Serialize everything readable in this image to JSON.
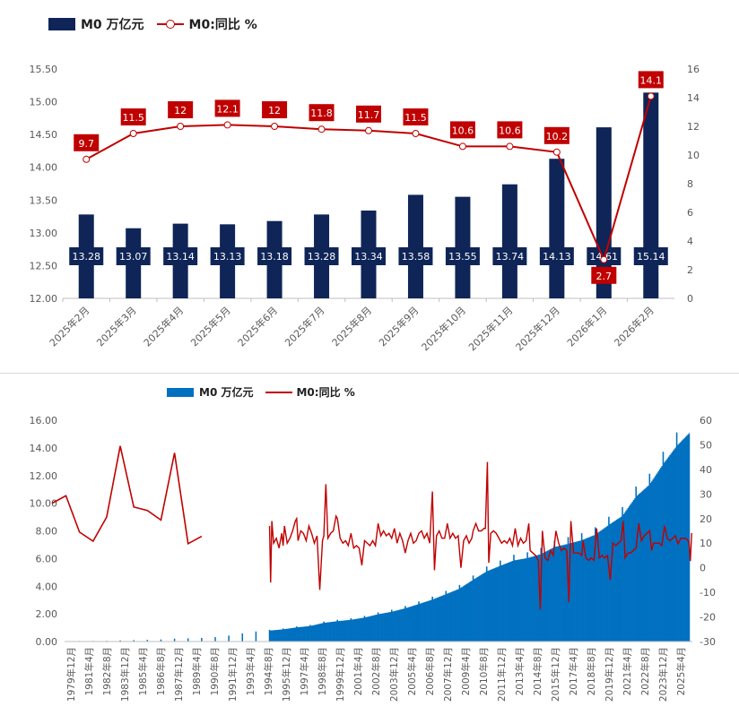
{
  "chart_data": [
    {
      "type": "bar",
      "categories": [
        "2025年2月",
        "2025年3月",
        "2025年4月",
        "2025年5月",
        "2025年6月",
        "2025年7月",
        "2025年8月",
        "2025年9月",
        "2025年10月",
        "2025年11月",
        "2025年12月",
        "2026年1月",
        "2026年2月"
      ],
      "series": [
        {
          "name": "M0 万亿元",
          "type": "bar",
          "axis": "left",
          "color": "#0f2557",
          "values": [
            13.28,
            13.07,
            13.14,
            13.13,
            13.18,
            13.28,
            13.34,
            13.58,
            13.55,
            13.74,
            14.13,
            14.61,
            15.14
          ]
        },
        {
          "name": "M0:同比 %",
          "type": "line",
          "axis": "right",
          "color": "#c00000",
          "values": [
            9.7,
            11.5,
            12,
            12.1,
            12,
            11.8,
            11.7,
            11.5,
            10.6,
            10.6,
            10.2,
            2.7,
            14.1
          ]
        }
      ],
      "ylim_left": [
        12.0,
        15.5
      ],
      "yticks_left": [
        "12.00",
        "12.50",
        "13.00",
        "13.50",
        "14.00",
        "14.50",
        "15.00",
        "15.50"
      ],
      "ylim_right": [
        0,
        16
      ],
      "yticks_right": [
        "0",
        "2",
        "4",
        "6",
        "8",
        "10",
        "12",
        "14",
        "16"
      ],
      "legend_position": "top-left",
      "grid": false
    },
    {
      "type": "area",
      "x_ticks": [
        "1979年12月",
        "1981年4月",
        "1982年8月",
        "1983年12月",
        "1985年4月",
        "1986年8月",
        "1987年12月",
        "1989年4月",
        "1990年8月",
        "1991年12月",
        "1993年4月",
        "1994年8月",
        "1995年12月",
        "1997年4月",
        "1998年8月",
        "1999年12月",
        "2001年4月",
        "2002年8月",
        "2003年12月",
        "2005年4月",
        "2006年8月",
        "2007年12月",
        "2009年4月",
        "2010年8月",
        "2011年12月",
        "2013年4月",
        "2014年8月",
        "2015年12月",
        "2017年4月",
        "2018年8月",
        "2019年12月",
        "2021年4月",
        "2022年8月",
        "2023年12月",
        "2025年4月"
      ],
      "series": [
        {
          "name": "M0 万亿元",
          "type": "area",
          "axis": "left",
          "color": "#0070c0",
          "annual_points": [
            [
              1979,
              0.03
            ],
            [
              1980,
              0.03
            ],
            [
              1981,
              0.04
            ],
            [
              1982,
              0.04
            ],
            [
              1983,
              0.05
            ],
            [
              1984,
              0.08
            ],
            [
              1985,
              0.1
            ],
            [
              1986,
              0.12
            ],
            [
              1987,
              0.15
            ],
            [
              1988,
              0.21
            ],
            [
              1989,
              0.23
            ],
            [
              1990,
              0.26
            ],
            [
              1991,
              0.32
            ],
            [
              1992,
              0.43
            ],
            [
              1993,
              0.59
            ],
            [
              1994,
              0.73
            ],
            [
              1995,
              0.79
            ],
            [
              1996,
              0.88
            ],
            [
              1997,
              1.02
            ],
            [
              1998,
              1.12
            ],
            [
              1999,
              1.35
            ],
            [
              2000,
              1.47
            ],
            [
              2001,
              1.57
            ],
            [
              2002,
              1.73
            ],
            [
              2003,
              1.97
            ],
            [
              2004,
              2.15
            ],
            [
              2005,
              2.4
            ],
            [
              2006,
              2.71
            ],
            [
              2007,
              3.03
            ],
            [
              2008,
              3.42
            ],
            [
              2009,
              3.82
            ],
            [
              2010,
              4.46
            ],
            [
              2011,
              5.07
            ],
            [
              2012,
              5.47
            ],
            [
              2013,
              5.86
            ],
            [
              2014,
              6.03
            ],
            [
              2015,
              6.32
            ],
            [
              2016,
              6.83
            ],
            [
              2017,
              7.06
            ],
            [
              2018,
              7.32
            ],
            [
              2019,
              7.72
            ],
            [
              2020,
              8.43
            ],
            [
              2021,
              9.08
            ],
            [
              2022,
              10.47
            ],
            [
              2023,
              11.34
            ],
            [
              2024,
              12.82
            ],
            [
              2025,
              14.13
            ],
            [
              2026,
              15.14
            ]
          ]
        },
        {
          "name": "M0:同比 %",
          "type": "line",
          "axis": "right",
          "color": "#c00000",
          "annual_points": [
            [
              1979,
              26.3
            ],
            [
              1980,
              29.3
            ],
            [
              1981,
              14.5
            ],
            [
              1982,
              10.8
            ],
            [
              1983,
              20.6
            ],
            [
              1984,
              49.5
            ],
            [
              1985,
              24.7
            ],
            [
              1986,
              23.3
            ],
            [
              1987,
              19.4
            ],
            [
              1988,
              46.7
            ],
            [
              1989,
              9.8
            ],
            [
              1990,
              12.8
            ]
          ],
          "monthly_points": [
            [
              1995.0,
              17
            ],
            [
              1995.08,
              -6
            ],
            [
              1995.17,
              19
            ],
            [
              1995.3,
              10
            ],
            [
              1995.5,
              12
            ],
            [
              1995.7,
              8
            ],
            [
              1995.9,
              14
            ],
            [
              1996.0,
              9
            ],
            [
              1996.1,
              17
            ],
            [
              1996.3,
              10
            ],
            [
              1996.5,
              12
            ],
            [
              1996.7,
              15
            ],
            [
              1996.9,
              19
            ],
            [
              1997.0,
              20
            ],
            [
              1997.1,
              11
            ],
            [
              1997.3,
              15
            ],
            [
              1997.5,
              14
            ],
            [
              1997.7,
              11
            ],
            [
              1997.9,
              17
            ],
            [
              1998.1,
              14
            ],
            [
              1998.3,
              10
            ],
            [
              1998.5,
              13
            ],
            [
              1998.7,
              -9
            ],
            [
              1998.9,
              11
            ],
            [
              1999.0,
              13
            ],
            [
              1999.15,
              34
            ],
            [
              1999.3,
              12
            ],
            [
              1999.5,
              14
            ],
            [
              1999.7,
              15
            ],
            [
              1999.9,
              21
            ],
            [
              2000.0,
              20
            ],
            [
              2000.2,
              12
            ],
            [
              2000.4,
              10
            ],
            [
              2000.6,
              11
            ],
            [
              2000.8,
              9
            ],
            [
              2001.0,
              14
            ],
            [
              2001.2,
              8
            ],
            [
              2001.4,
              9
            ],
            [
              2001.6,
              8
            ],
            [
              2001.8,
              1
            ],
            [
              2002.0,
              11
            ],
            [
              2002.2,
              10
            ],
            [
              2002.4,
              9
            ],
            [
              2002.6,
              11
            ],
            [
              2002.8,
              9
            ],
            [
              2003.0,
              18
            ],
            [
              2003.2,
              13
            ],
            [
              2003.4,
              15
            ],
            [
              2003.6,
              13
            ],
            [
              2003.8,
              14
            ],
            [
              2004.0,
              12
            ],
            [
              2004.2,
              16
            ],
            [
              2004.4,
              10
            ],
            [
              2004.6,
              14
            ],
            [
              2004.8,
              11
            ],
            [
              2005.0,
              6
            ],
            [
              2005.2,
              11
            ],
            [
              2005.4,
              14
            ],
            [
              2005.6,
              10
            ],
            [
              2005.8,
              11
            ],
            [
              2006.0,
              14
            ],
            [
              2006.2,
              15
            ],
            [
              2006.4,
              12
            ],
            [
              2006.6,
              14
            ],
            [
              2006.8,
              10
            ],
            [
              2007.0,
              31
            ],
            [
              2007.15,
              -1
            ],
            [
              2007.3,
              13
            ],
            [
              2007.5,
              15
            ],
            [
              2007.7,
              12
            ],
            [
              2007.9,
              12
            ],
            [
              2008.1,
              18
            ],
            [
              2008.3,
              12
            ],
            [
              2008.5,
              14
            ],
            [
              2008.7,
              12
            ],
            [
              2008.9,
              13
            ],
            [
              2009.1,
              0
            ],
            [
              2009.3,
              11
            ],
            [
              2009.5,
              13
            ],
            [
              2009.7,
              10
            ],
            [
              2009.9,
              12
            ],
            [
              2010.0,
              15
            ],
            [
              2010.2,
              18
            ],
            [
              2010.4,
              15
            ],
            [
              2010.6,
              15
            ],
            [
              2010.8,
              16
            ],
            [
              2010.9,
              16
            ],
            [
              2011.05,
              43
            ],
            [
              2011.15,
              2
            ],
            [
              2011.3,
              14
            ],
            [
              2011.5,
              15
            ],
            [
              2011.7,
              14
            ],
            [
              2011.9,
              12
            ],
            [
              2012.1,
              10
            ],
            [
              2012.3,
              11
            ],
            [
              2012.5,
              10
            ],
            [
              2012.7,
              12
            ],
            [
              2012.9,
              9
            ],
            [
              2013.1,
              16
            ],
            [
              2013.3,
              9
            ],
            [
              2013.5,
              12
            ],
            [
              2013.7,
              10
            ],
            [
              2013.9,
              11
            ],
            [
              2014.1,
              18
            ],
            [
              2014.2,
              7
            ],
            [
              2014.4,
              6
            ],
            [
              2014.6,
              5
            ],
            [
              2014.8,
              3
            ],
            [
              2014.95,
              -17
            ],
            [
              2015.1,
              15
            ],
            [
              2015.3,
              4
            ],
            [
              2015.5,
              3
            ],
            [
              2015.7,
              7
            ],
            [
              2015.9,
              5
            ],
            [
              2016.1,
              15
            ],
            [
              2016.3,
              10
            ],
            [
              2016.5,
              7
            ],
            [
              2016.7,
              8
            ],
            [
              2016.9,
              7
            ],
            [
              2017.05,
              -14
            ],
            [
              2017.2,
              19
            ],
            [
              2017.4,
              6
            ],
            [
              2017.6,
              6
            ],
            [
              2017.8,
              6
            ],
            [
              2018.0,
              5
            ],
            [
              2018.1,
              11
            ],
            [
              2018.3,
              4
            ],
            [
              2018.5,
              3
            ],
            [
              2018.7,
              4
            ],
            [
              2018.9,
              3
            ],
            [
              2019.1,
              16
            ],
            [
              2019.3,
              4
            ],
            [
              2019.5,
              5
            ],
            [
              2019.7,
              4
            ],
            [
              2019.9,
              5
            ],
            [
              2020.1,
              -5
            ],
            [
              2020.3,
              10
            ],
            [
              2020.5,
              9
            ],
            [
              2020.7,
              10
            ],
            [
              2020.9,
              11
            ],
            [
              2021.05,
              19
            ],
            [
              2021.2,
              4
            ],
            [
              2021.4,
              6
            ],
            [
              2021.6,
              6
            ],
            [
              2021.8,
              7
            ],
            [
              2022.0,
              8
            ],
            [
              2022.2,
              18
            ],
            [
              2022.4,
              11
            ],
            [
              2022.6,
              13
            ],
            [
              2022.8,
              14
            ],
            [
              2023.0,
              15
            ],
            [
              2023.15,
              7
            ],
            [
              2023.3,
              10
            ],
            [
              2023.5,
              10
            ],
            [
              2023.7,
              10
            ],
            [
              2023.9,
              9
            ],
            [
              2024.1,
              17
            ],
            [
              2024.3,
              12
            ],
            [
              2024.5,
              11
            ],
            [
              2024.7,
              12
            ],
            [
              2024.9,
              13
            ],
            [
              2025.1,
              9.7
            ],
            [
              2025.3,
              12
            ],
            [
              2025.5,
              12
            ],
            [
              2025.7,
              11.8
            ],
            [
              2025.9,
              10.6
            ],
            [
              2026.0,
              2.7
            ],
            [
              2026.1,
              14.1
            ]
          ]
        }
      ],
      "ylim_left": [
        0,
        16
      ],
      "yticks_left": [
        "0.00",
        "2.00",
        "4.00",
        "6.00",
        "8.00",
        "10.00",
        "12.00",
        "14.00",
        "16.00"
      ],
      "ylim_right": [
        -30,
        60
      ],
      "yticks_right": [
        "-30",
        "-20",
        "-10",
        "0",
        "10",
        "20",
        "30",
        "40",
        "50",
        "60"
      ],
      "legend_position": "top-center",
      "grid": false
    }
  ],
  "legend1": {
    "bar_label": "M0 万亿元",
    "line_label": "M0:同比 %"
  },
  "legend2": {
    "bar_label": "M0 万亿元",
    "line_label": "M0:同比 %"
  },
  "colors": {
    "bar_dark": "#0f2557",
    "area_blue": "#0070c0",
    "line_red": "#c00000",
    "label_red": "#c00000",
    "axis_text": "#595959"
  }
}
